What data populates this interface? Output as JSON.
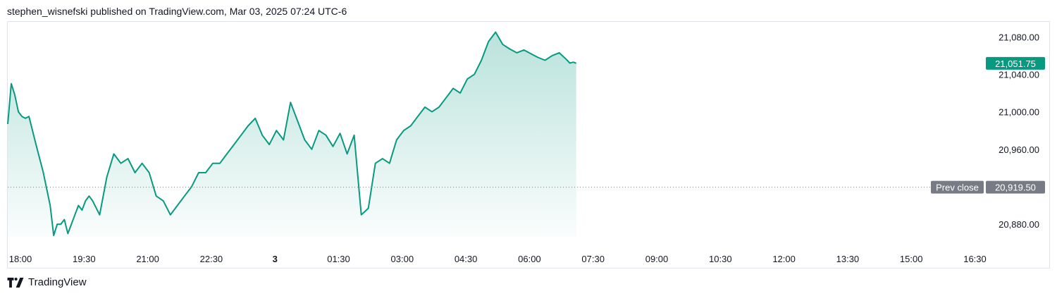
{
  "header": {
    "attribution": "stephen_wisnefski published on TradingView.com, Mar 03, 2025 07:24 UTC-6"
  },
  "footer": {
    "brand": "TradingView",
    "logo_icon": "tradingview-logo-icon"
  },
  "colors": {
    "line": "#089981",
    "area_top": "#089981",
    "price_badge": "#089981",
    "prev_close_badge": "#787b86",
    "grid": "#f0f3fa",
    "text": "#131722"
  },
  "chart_data": {
    "type": "area",
    "title": "",
    "xlabel": "",
    "ylabel": "",
    "x_ticks": [
      "18:00",
      "19:30",
      "21:00",
      "22:30",
      "3",
      "01:30",
      "03:00",
      "04:30",
      "06:00",
      "07:30",
      "09:00",
      "10:30",
      "12:00",
      "13:30",
      "15:00",
      "16:30"
    ],
    "y_ticks": [
      "20,880.00",
      "20,920.00",
      "20,960.00",
      "21,000.00",
      "21,040.00",
      "21,080.00"
    ],
    "y_tick_values": [
      20880,
      20920,
      20960,
      21000,
      21040,
      21080
    ],
    "ylim": [
      20856,
      21096
    ],
    "last_price": 21051.75,
    "last_price_label": "21,051.75",
    "prev_close": 20919.5,
    "prev_close_label": "20,919.50",
    "prev_close_text": "Prev close",
    "series": [
      {
        "x": [
          "18:00",
          "18:05",
          "18:10",
          "18:15",
          "18:20",
          "18:25",
          "18:30",
          "18:40",
          "18:50",
          "19:00",
          "19:05",
          "19:10",
          "19:15",
          "19:20",
          "19:25",
          "19:30",
          "19:35",
          "19:40",
          "19:45",
          "19:50",
          "19:55",
          "20:00",
          "20:10",
          "20:20",
          "20:30",
          "20:40",
          "20:50",
          "21:00",
          "21:10",
          "21:20",
          "21:30",
          "21:40",
          "21:50",
          "22:00",
          "22:10",
          "22:20",
          "22:30",
          "22:40",
          "22:50",
          "23:00",
          "23:10",
          "23:20",
          "23:30",
          "23:40",
          "23:50",
          "00:00",
          "00:10",
          "00:20",
          "00:30",
          "00:40",
          "00:50",
          "01:00",
          "01:10",
          "01:20",
          "01:30",
          "01:40",
          "01:50",
          "02:00",
          "02:10",
          "02:20",
          "02:30",
          "02:40",
          "02:50",
          "03:00",
          "03:10",
          "03:20",
          "03:30",
          "03:40",
          "03:50",
          "04:00",
          "04:10",
          "04:20",
          "04:30",
          "04:40",
          "04:50",
          "05:00",
          "05:10",
          "05:20",
          "05:30",
          "05:40",
          "05:50",
          "06:00",
          "06:10",
          "06:20",
          "06:30",
          "06:40",
          "06:50",
          "07:00",
          "07:10",
          "07:15",
          "07:20",
          "07:24"
        ],
        "y": [
          20987,
          21030,
          21018,
          21000,
          20995,
          20993,
          20995,
          20965,
          20936,
          20900,
          20868,
          20880,
          20880,
          20885,
          20870,
          20880,
          20890,
          20900,
          20895,
          20905,
          20910,
          20905,
          20890,
          20930,
          20955,
          20945,
          20950,
          20935,
          20945,
          20935,
          20910,
          20905,
          20890,
          20900,
          20910,
          20920,
          20935,
          20935,
          20945,
          20945,
          20955,
          20965,
          20975,
          20985,
          20993,
          20975,
          20965,
          20980,
          20970,
          21010,
          20990,
          20970,
          20960,
          20980,
          20975,
          20963,
          20977,
          20955,
          20975,
          20890,
          20897,
          20945,
          20950,
          20945,
          20970,
          20980,
          20985,
          20995,
          21005,
          21000,
          21005,
          21015,
          21025,
          21020,
          21035,
          21040,
          21055,
          21075,
          21085,
          21072,
          21067,
          21063,
          21066,
          21062,
          21058,
          21055,
          21060,
          21063,
          21056,
          21052,
          21053,
          21051.75
        ]
      }
    ]
  }
}
